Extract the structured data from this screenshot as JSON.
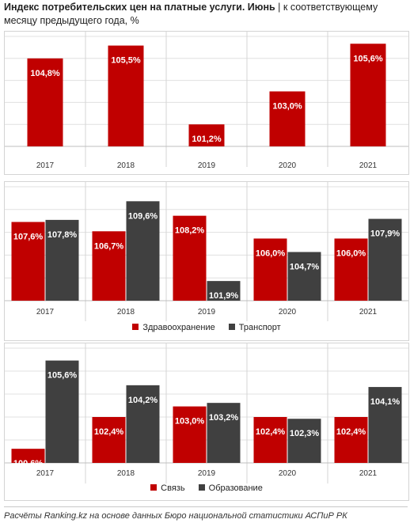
{
  "title": "Индекс потребительских цен на платные услуги. Июнь",
  "subtitle": "| к соответствующему месяцу предыдущего года, %",
  "colors": {
    "red": "#c00000",
    "dark": "#404040",
    "grid": "#e0e0e0"
  },
  "chart_data": [
    {
      "type": "bar",
      "categories": [
        "2017",
        "2018",
        "2019",
        "2020",
        "2021"
      ],
      "series": [
        {
          "values": [
            104.8,
            105.5,
            101.2,
            103.0,
            105.6
          ],
          "labels": [
            "104,8%",
            "105,5%",
            "101,2%",
            "103,0%",
            "105,6%"
          ],
          "color": "#c00000"
        }
      ],
      "ylim": [
        100,
        106
      ],
      "grid": true,
      "legend": null
    },
    {
      "type": "bar",
      "categories": [
        "2017",
        "2018",
        "2019",
        "2020",
        "2021"
      ],
      "series": [
        {
          "name": "Здравоохранение",
          "values": [
            107.6,
            106.7,
            108.2,
            106.0,
            106.0
          ],
          "labels": [
            "107,6%",
            "106,7%",
            "108,2%",
            "106,0%",
            "106,0%"
          ],
          "color": "#c00000"
        },
        {
          "name": "Транспорт",
          "values": [
            107.8,
            109.6,
            101.9,
            104.7,
            107.9
          ],
          "labels": [
            "107,8%",
            "109,6%",
            "101,9%",
            "104,7%",
            "107,9%"
          ],
          "color": "#404040"
        }
      ],
      "ylim": [
        100,
        111
      ],
      "grid": true,
      "legend": "bottom"
    },
    {
      "type": "bar",
      "categories": [
        "2017",
        "2018",
        "2019",
        "2020",
        "2021"
      ],
      "series": [
        {
          "name": "Связь",
          "values": [
            100.6,
            102.4,
            103.0,
            102.4,
            102.4
          ],
          "labels": [
            "100,6%",
            "102,4%",
            "103,0%",
            "102,4%",
            "102,4%"
          ],
          "color": "#c00000"
        },
        {
          "name": "Образование",
          "values": [
            105.6,
            104.2,
            103.2,
            102.3,
            104.1
          ],
          "labels": [
            "105,6%",
            "104,2%",
            "103,2%",
            "102,3%",
            "104,1%"
          ],
          "color": "#404040"
        }
      ],
      "ylim": [
        99.8,
        106.3
      ],
      "grid": true,
      "legend": "bottom"
    }
  ],
  "footer": "Расчёты Ranking.kz на основе данных Бюро национальной статистики АСПиР РК"
}
